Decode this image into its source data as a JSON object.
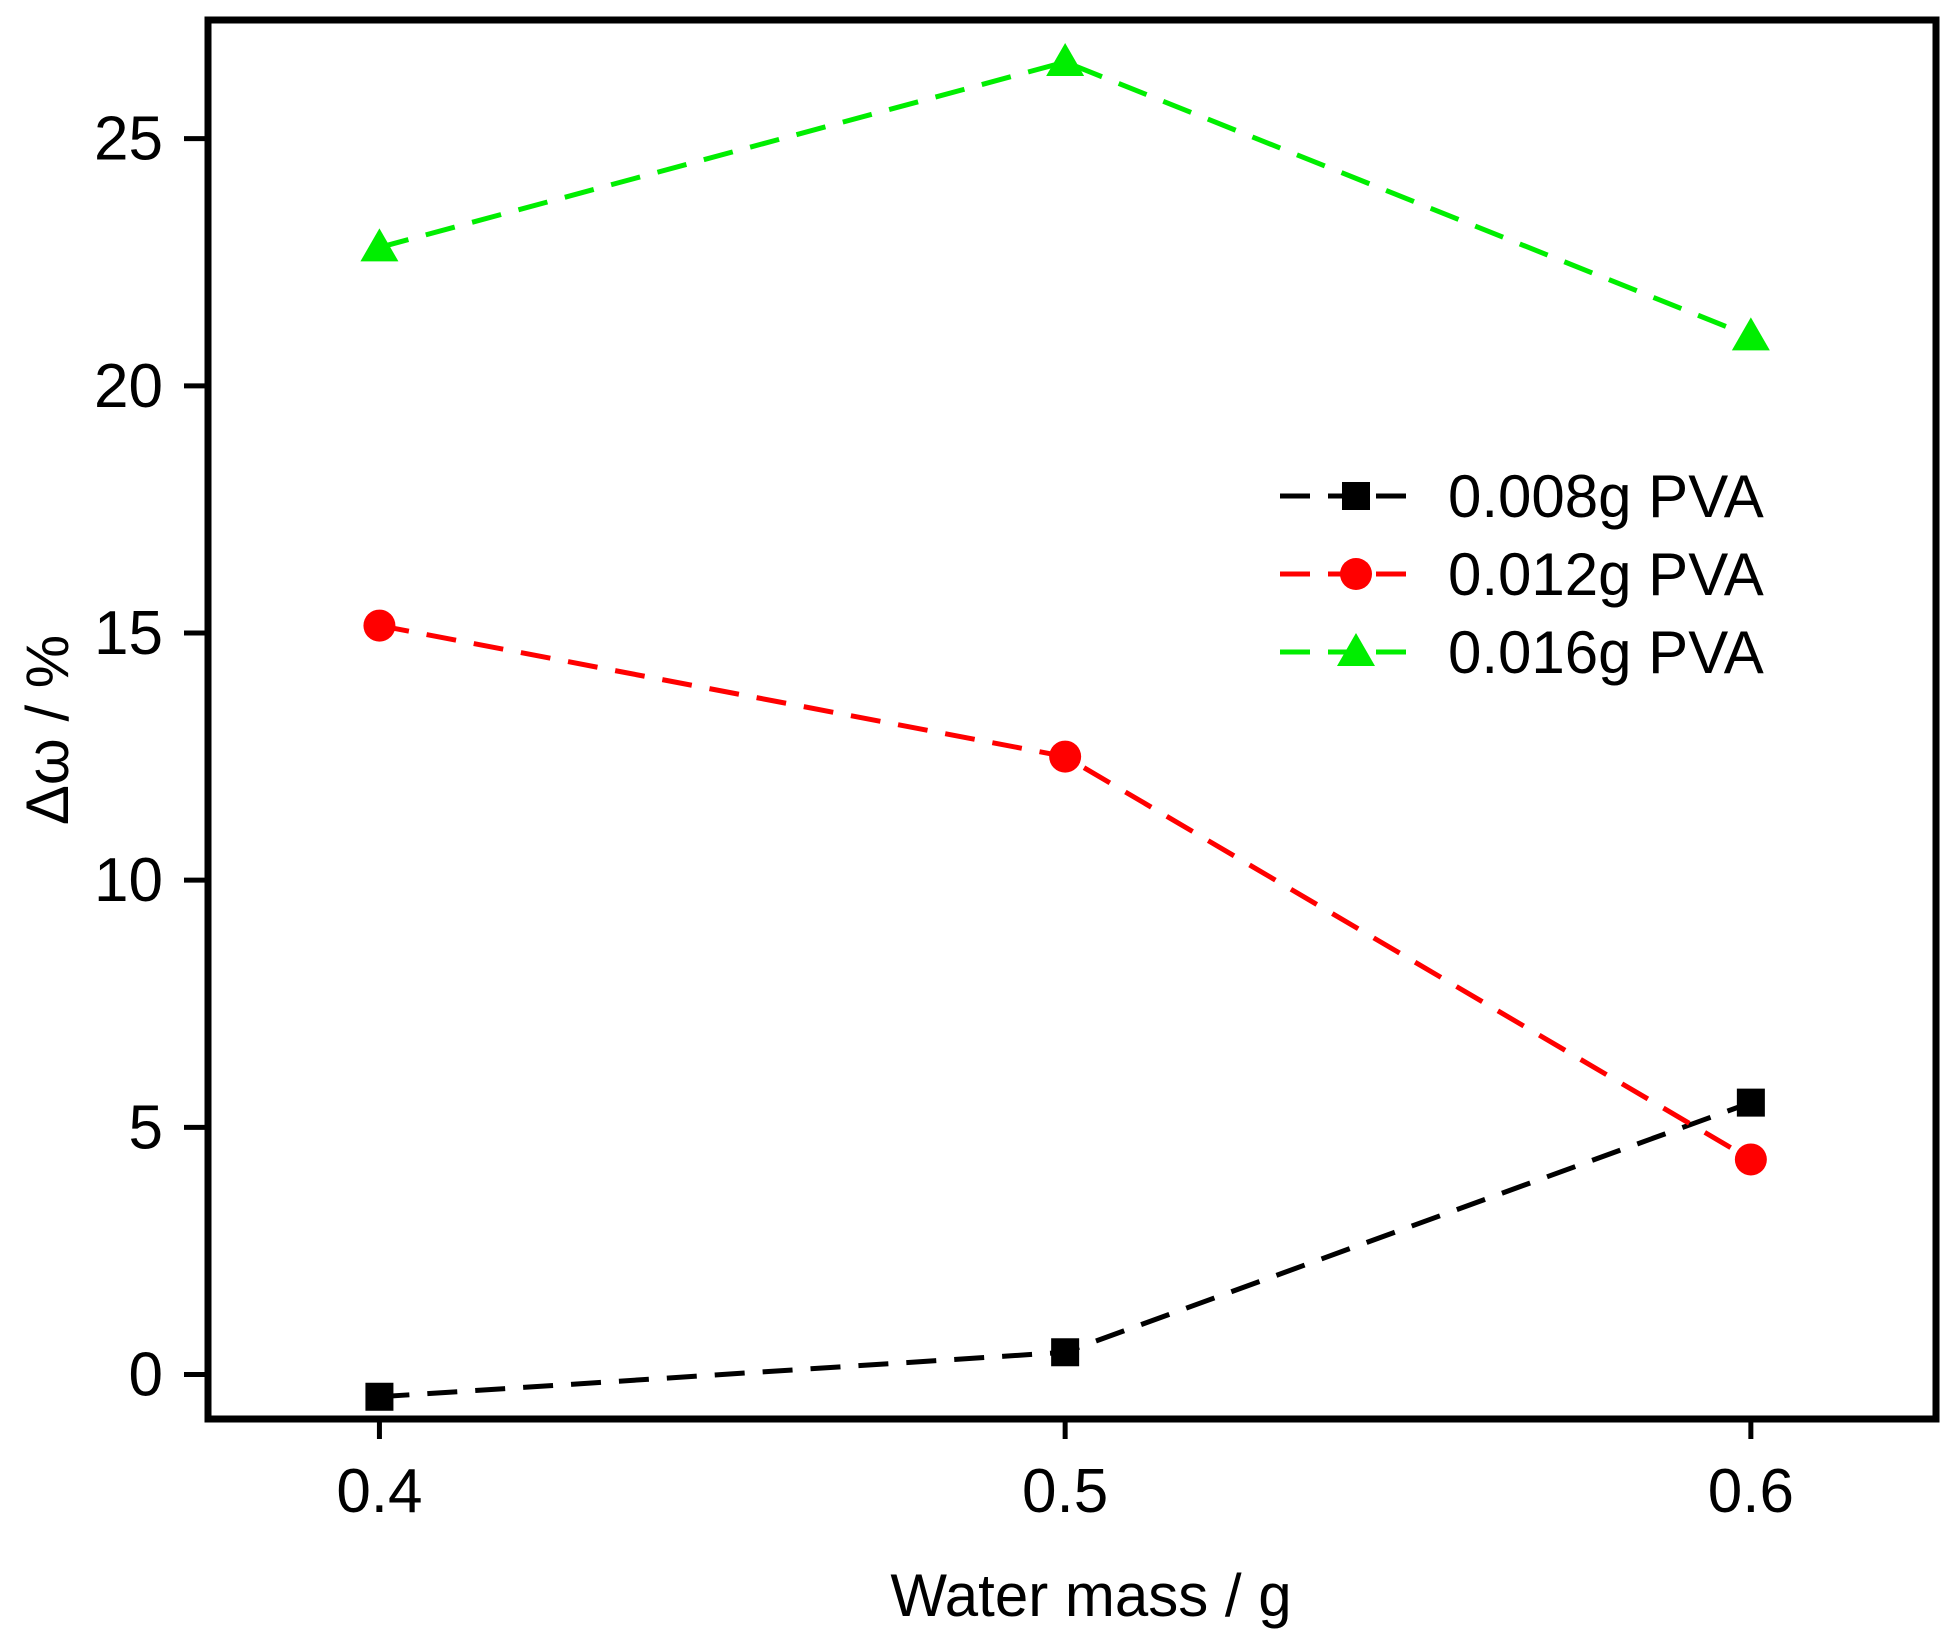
{
  "chart_data": {
    "type": "line",
    "title": "",
    "xlabel": "Water mass / g",
    "ylabel": "Δω / %",
    "x": [
      0.4,
      0.5,
      0.6
    ],
    "x_ticks": [
      0.4,
      0.5,
      0.6
    ],
    "x_tick_labels": [
      "0.4",
      "0.5",
      "0.6"
    ],
    "xlim": [
      0.375,
      0.627
    ],
    "y_ticks": [
      0,
      5,
      10,
      15,
      20,
      25
    ],
    "y_tick_labels": [
      "0",
      "5",
      "10",
      "15",
      "20",
      "25"
    ],
    "ylim": [
      -0.9,
      27.4
    ],
    "grid": false,
    "legend_position": "right",
    "series": [
      {
        "name": "0.008g PVA",
        "label": "0.008g PVA",
        "values": [
          -0.45,
          0.45,
          5.5
        ],
        "color": "#000000",
        "marker": "square",
        "line_style": "dashed"
      },
      {
        "name": "0.012g PVA",
        "label": "0.012g PVA",
        "values": [
          15.15,
          12.5,
          4.35
        ],
        "color": "#ff0000",
        "marker": "circle",
        "line_style": "dashed"
      },
      {
        "name": "0.016g PVA",
        "label": "0.016g PVA",
        "values": [
          22.8,
          26.55,
          21.0
        ],
        "color": "#00ee00",
        "marker": "triangle",
        "line_style": "dashed"
      }
    ]
  }
}
